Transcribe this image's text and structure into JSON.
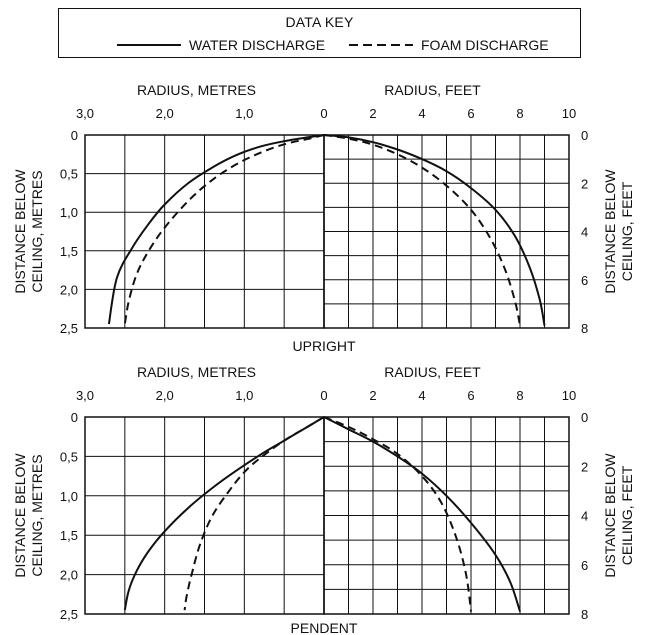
{
  "key": {
    "title": "DATA KEY",
    "water_label": "WATER DISCHARGE",
    "foam_label": "FOAM DISCHARGE"
  },
  "chart_data": [
    {
      "type": "line",
      "title": "UPRIGHT",
      "left": {
        "xlabel": "RADIUS, METRES",
        "ylabel_line1": "DISTANCE BELOW",
        "ylabel_line2": "CEILING, METRES",
        "xticks": [
          "3,0",
          "2,0",
          "1,0",
          "0"
        ],
        "yticks": [
          "0",
          "0,5",
          "1,0",
          "1,5",
          "2,0",
          "2,5"
        ],
        "xlim": [
          3.0,
          0
        ],
        "ylim": [
          0,
          2.5
        ]
      },
      "right": {
        "xlabel": "RADIUS, FEET",
        "ylabel_line1": "DISTANCE BELOW",
        "ylabel_line2": "CEILING, FEET",
        "xticks": [
          "0",
          "2",
          "4",
          "6",
          "8",
          "10"
        ],
        "yticks": [
          "0",
          "2",
          "4",
          "6",
          "8"
        ],
        "xlim": [
          0,
          10
        ],
        "ylim": [
          0,
          8
        ]
      },
      "series": [
        {
          "name": "WATER DISCHARGE",
          "side": "left",
          "x": [
            0,
            0.2,
            0.5,
            0.8,
            1.1,
            1.4,
            1.7,
            2.0,
            2.2,
            2.4,
            2.6,
            2.7
          ],
          "y": [
            0,
            0.03,
            0.08,
            0.15,
            0.26,
            0.42,
            0.62,
            0.9,
            1.15,
            1.45,
            1.85,
            2.45
          ]
        },
        {
          "name": "FOAM DISCHARGE",
          "side": "left",
          "x": [
            0,
            0.2,
            0.5,
            0.8,
            1.1,
            1.4,
            1.7,
            2.0,
            2.2,
            2.35,
            2.45,
            2.5
          ],
          "y": [
            0,
            0.05,
            0.12,
            0.23,
            0.38,
            0.58,
            0.85,
            1.2,
            1.5,
            1.8,
            2.15,
            2.45
          ]
        },
        {
          "name": "WATER DISCHARGE",
          "side": "right",
          "x": [
            0,
            1,
            2,
            3,
            4,
            5,
            6,
            7,
            7.8,
            8.4,
            8.8,
            9.0
          ],
          "y": [
            0,
            0.1,
            0.3,
            0.6,
            1.0,
            1.5,
            2.2,
            3.1,
            4.2,
            5.5,
            6.8,
            7.9
          ]
        },
        {
          "name": "FOAM DISCHARGE",
          "side": "right",
          "x": [
            0,
            1,
            2,
            3,
            4,
            5,
            6,
            6.8,
            7.4,
            7.8,
            8.0
          ],
          "y": [
            0,
            0.15,
            0.4,
            0.8,
            1.35,
            2.1,
            3.1,
            4.3,
            5.6,
            6.9,
            7.9
          ]
        }
      ]
    },
    {
      "type": "line",
      "title": "PENDENT",
      "left": {
        "xlabel": "RADIUS, METRES",
        "ylabel_line1": "DISTANCE BELOW",
        "ylabel_line2": "CEILING, METRES",
        "xticks": [
          "3,0",
          "2,0",
          "1,0",
          "0"
        ],
        "yticks": [
          "0",
          "0,5",
          "1,0",
          "1,5",
          "2,0",
          "2,5"
        ],
        "xlim": [
          3.0,
          0
        ],
        "ylim": [
          0,
          2.5
        ]
      },
      "right": {
        "xlabel": "RADIUS, FEET",
        "ylabel_line1": "DISTANCE BELOW",
        "ylabel_line2": "CEILING, FEET",
        "xticks": [
          "0",
          "2",
          "4",
          "6",
          "8",
          "10"
        ],
        "yticks": [
          "0",
          "2",
          "4",
          "6",
          "8"
        ],
        "xlim": [
          0,
          10
        ],
        "ylim": [
          0,
          8
        ]
      },
      "series": [
        {
          "name": "WATER DISCHARGE",
          "side": "left",
          "x": [
            0,
            0.2,
            0.5,
            0.8,
            1.1,
            1.4,
            1.7,
            2.0,
            2.2,
            2.35,
            2.45,
            2.5
          ],
          "y": [
            0,
            0.12,
            0.3,
            0.48,
            0.68,
            0.9,
            1.15,
            1.45,
            1.7,
            1.95,
            2.2,
            2.45
          ]
        },
        {
          "name": "FOAM DISCHARGE",
          "side": "left",
          "x": [
            0,
            0.2,
            0.5,
            0.8,
            1.0,
            1.2,
            1.4,
            1.55,
            1.65,
            1.72,
            1.75
          ],
          "y": [
            0,
            0.12,
            0.3,
            0.52,
            0.7,
            0.95,
            1.25,
            1.6,
            1.95,
            2.25,
            2.45
          ]
        },
        {
          "name": "WATER DISCHARGE",
          "side": "right",
          "x": [
            0,
            1,
            2,
            3,
            4,
            5,
            6,
            7,
            7.6,
            8.0
          ],
          "y": [
            0,
            0.5,
            1.0,
            1.6,
            2.3,
            3.2,
            4.3,
            5.6,
            6.7,
            7.9
          ]
        },
        {
          "name": "FOAM DISCHARGE",
          "side": "right",
          "x": [
            0,
            1,
            2,
            3,
            4,
            4.8,
            5.4,
            5.8,
            6.0
          ],
          "y": [
            0,
            0.4,
            0.9,
            1.5,
            2.4,
            3.5,
            4.9,
            6.4,
            7.9
          ]
        }
      ]
    }
  ]
}
